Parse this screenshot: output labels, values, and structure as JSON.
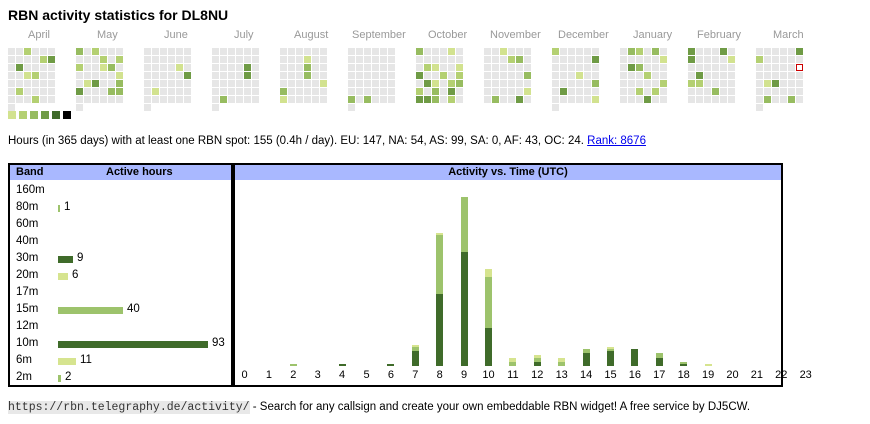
{
  "title": "RBN activity statistics for DL8NU",
  "months": [
    "April",
    "May",
    "June",
    "July",
    "August",
    "September",
    "October",
    "November",
    "December",
    "January",
    "February",
    "March"
  ],
  "summary": {
    "text": "Hours (in 365 days) with at least one RBN spot: 155 (0.4h / day). EU: 147, NA: 54, AS: 99, SA: 0, AF: 43, OC: 24.",
    "rank_link": "Rank: 8676"
  },
  "colors": {
    "empty": "#e6e6e6",
    "levels": [
      "#d2e28f",
      "#b4d072",
      "#97bc60",
      "#6f9b45",
      "#3f6b2a",
      "#000000"
    ],
    "today_border": "#cc0000",
    "bar_dark": "#3f6b2a",
    "bar_mid": "#9dc36c",
    "bar_light": "#d6e48f"
  },
  "bands": {
    "header_band": "Band",
    "header_hours": "Active hours",
    "items": [
      {
        "band": "160m",
        "hours": null,
        "color": "dark"
      },
      {
        "band": "80m",
        "hours": 1,
        "color": "mid"
      },
      {
        "band": "60m",
        "hours": null,
        "color": "dark"
      },
      {
        "band": "40m",
        "hours": null,
        "color": "dark"
      },
      {
        "band": "30m",
        "hours": 9,
        "color": "dark"
      },
      {
        "band": "20m",
        "hours": 6,
        "color": "light"
      },
      {
        "band": "17m",
        "hours": null,
        "color": "dark"
      },
      {
        "band": "15m",
        "hours": 40,
        "color": "mid"
      },
      {
        "band": "12m",
        "hours": null,
        "color": "dark"
      },
      {
        "band": "10m",
        "hours": 93,
        "color": "dark"
      },
      {
        "band": "6m",
        "hours": 11,
        "color": "light"
      },
      {
        "band": "2m",
        "hours": 2,
        "color": "mid"
      }
    ]
  },
  "chart_data": {
    "type": "bar",
    "title": "Activity vs. Time (UTC)",
    "categories": [
      "0",
      "1",
      "2",
      "3",
      "4",
      "5",
      "6",
      "7",
      "8",
      "9",
      "10",
      "11",
      "12",
      "13",
      "14",
      "15",
      "16",
      "17",
      "18",
      "19",
      "20",
      "21",
      "22",
      "23"
    ],
    "series": [
      {
        "name": "dark",
        "values": [
          0,
          0,
          0,
          0,
          1,
          0,
          1,
          7,
          34,
          54,
          18,
          0,
          2,
          0,
          6,
          7,
          8,
          4,
          1,
          0,
          0,
          0,
          0,
          0
        ]
      },
      {
        "name": "mid",
        "values": [
          0,
          0,
          1,
          0,
          0,
          0,
          0,
          2,
          28,
          26,
          24,
          2,
          2,
          2,
          2,
          1,
          0,
          2,
          1,
          0,
          0,
          0,
          0,
          0
        ]
      },
      {
        "name": "light",
        "values": [
          0,
          0,
          0,
          0,
          0,
          0,
          0,
          1,
          1,
          0,
          4,
          2,
          1,
          2,
          0,
          1,
          0,
          0,
          0,
          1,
          0,
          0,
          0,
          0
        ]
      }
    ],
    "ylim": [
      0,
      82
    ]
  },
  "footer": {
    "url": "https://rbn.telegraphy.de/activity/",
    "text": "- Search for any callsign and create your own embeddable RBN widget! A free service by DJ5CW."
  }
}
